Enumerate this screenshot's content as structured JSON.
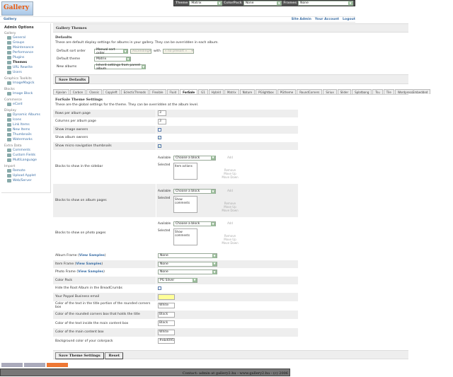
{
  "topbar": {
    "theme_label": "Theme",
    "theme": "Matrix",
    "colorpack_label": "ColorPack",
    "colorpack": "None",
    "frames_label": "Frames",
    "frames": "None"
  },
  "logo": "Gallery",
  "breadcrumb": "Gallery",
  "toplinks": [
    "Site Admin",
    "Your Account",
    "Logout"
  ],
  "sidebar": {
    "title": "Admin Options",
    "groups": [
      {
        "name": "Gallery",
        "items": [
          "General",
          "Groups",
          "Maintenance",
          "Performance",
          "Plugins",
          "Themes",
          "URL Rewrite",
          "Users"
        ]
      },
      {
        "name": "Graphics Toolkits",
        "items": [
          "ImageMagick"
        ]
      },
      {
        "name": "Blocks",
        "items": [
          "Image Block"
        ]
      },
      {
        "name": "Commerce",
        "items": [
          "eCard"
        ]
      },
      {
        "name": "Display",
        "items": [
          "Dynamic Albums",
          "Icons",
          "Link Items",
          "New Items",
          "Thumbnails",
          "Watermarks"
        ]
      },
      {
        "name": "Extra Data",
        "items": [
          "Comments",
          "Custom Fields",
          "MultiLanguage"
        ]
      },
      {
        "name": "Import",
        "items": [
          "Remote",
          "Upload Applet",
          "Web/Server"
        ]
      }
    ],
    "active": "Themes"
  },
  "main": {
    "title": "Gallery Themes",
    "defaults_title": "Defaults",
    "defaults_desc": "These are default display settings for albums in your gallery. They can be overridden in each album.",
    "sort_label": "Default sort order",
    "sort": "Manual sort order",
    "direction": "Ascending",
    "with_label": "with",
    "preset": "« no presort »",
    "theme_label": "Default theme",
    "theme": "Matrix",
    "new_albums_label": "New albums",
    "new_albums": "Inherit settings from parent album",
    "save_defaults": "Save Defaults"
  },
  "tabs": [
    "Ajaxian",
    "Carbon",
    "Classic",
    "Copyleft",
    "EclecticThreads",
    "Flexible",
    "Fluid",
    "ForSale",
    "G1",
    "Hybrid",
    "Matrix",
    "Nature",
    "PGlightbox",
    "PGtheme",
    "RoundCorners",
    "Siriux",
    "Slider",
    "Splatbang",
    "Tsu",
    "Tile",
    "WordpressEmbedded"
  ],
  "active_tab": "ForSale",
  "theme": {
    "title": "ForSale Theme Settings",
    "desc": "These are the global settings for the theme. They can be overridden at the album level.",
    "rows_label": "Rows per album page",
    "rows": "3",
    "cols_label": "Columns per album page",
    "cols": "3",
    "img_owners_label": "Show image owners",
    "img_owners": false,
    "album_owners_label": "Show album owners",
    "album_owners": true,
    "micro_label": "Show micro navigation thumbnails",
    "micro": true,
    "blocks": [
      {
        "label": "Blocks to show in the sidebar",
        "selected": "Item actions"
      },
      {
        "label": "Blocks to show on album pages",
        "selected": "Show comments"
      },
      {
        "label": "Blocks to show on photo pages",
        "selected": "Show comments"
      }
    ],
    "available_label": "Available",
    "selected_label": "Selected",
    "choose": "Choose a block",
    "add": "Add",
    "remove": "Remove",
    "up": "Move Up",
    "down": "Move Down",
    "view_samples": "View Samples",
    "album_frame_label": "Album Frame",
    "album_frame": "None",
    "item_frame_label": "Item Frame",
    "item_frame": "None",
    "photo_frame_label": "Photo Frame",
    "photo_frame": "None",
    "colorpack_label": "Color Pack",
    "colorpack": "PG Silver",
    "hide_root_label": "Hide the Root Album in the BreadCrumbs",
    "paypal_label": "Your Paypal Business email",
    "paypal": "",
    "c1_label": "Color of the text in the title portion of the rounded corners box",
    "c1": "White",
    "c2_label": "Color of the rounded corners box that holds the title",
    "c2": "Black",
    "c3_label": "Color of the text inside the main content box",
    "c3": "Black",
    "c4_label": "Color of the main content box",
    "c4": "White",
    "c5_label": "Background color of your colorpack",
    "c5": "#ebd095",
    "save": "Save Theme Settings",
    "reset": "Reset"
  },
  "footer": "Contact: admin at gallery2.hu - www.gallery2.hu - (c) 2006"
}
